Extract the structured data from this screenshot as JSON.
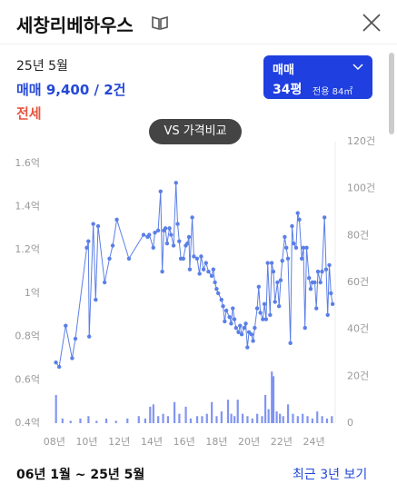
{
  "header": {
    "title": "세창리베하우스"
  },
  "summary": {
    "month": "25년 5월",
    "deal_type": "매매",
    "deal_value": "9,400 / 2건",
    "other_type": "전세"
  },
  "selector": {
    "type": "매매",
    "size": "34평",
    "area": "전용 84㎡"
  },
  "compare_button": "VS 가격비교",
  "footer": {
    "range": "06년 1월 ~ 25년 5월",
    "recent": "최근 3년 보기"
  },
  "chart_data": {
    "type": "line",
    "xlim": [
      2007.9,
      2025.2
    ],
    "xticks": [
      {
        "value": 2008,
        "label": "08년"
      },
      {
        "value": 2010,
        "label": "10년"
      },
      {
        "value": 2012,
        "label": "12년"
      },
      {
        "value": 2014,
        "label": "14년"
      },
      {
        "value": 2016,
        "label": "16년"
      },
      {
        "value": 2018,
        "label": "18년"
      },
      {
        "value": 2020,
        "label": "20년"
      },
      {
        "value": 2022,
        "label": "22년"
      },
      {
        "value": 2024,
        "label": "24년"
      }
    ],
    "ylim": [
      0.4,
      1.7
    ],
    "yticks": [
      {
        "value": 0.4,
        "label": "0.4억"
      },
      {
        "value": 0.6,
        "label": "0.6억"
      },
      {
        "value": 0.8,
        "label": "0.8억"
      },
      {
        "value": 1,
        "label": "1억"
      },
      {
        "value": 1.2,
        "label": "1.2억"
      },
      {
        "value": 1.4,
        "label": "1.4억"
      },
      {
        "value": 1.6,
        "label": "1.6억"
      }
    ],
    "y2lim": [
      0,
      120
    ],
    "y2ticks": [
      0,
      {
        "value": 20,
        "label": "20건"
      },
      {
        "value": 40,
        "label": "40건"
      },
      {
        "value": 60,
        "label": "60건"
      },
      {
        "value": 80,
        "label": "80건"
      },
      {
        "value": 100,
        "label": "100건"
      },
      {
        "value": 120,
        "label": "120건"
      }
    ],
    "line": {
      "color": "#5b7fe6",
      "x": [
        2008.1,
        2008.3,
        2008.7,
        2009.1,
        2009.3,
        2010.0,
        2010.1,
        2010.15,
        2010.4,
        2010.55,
        2010.7,
        2011.1,
        2011.4,
        2011.6,
        2011.85,
        2012.6,
        2013.5,
        2013.75,
        2013.85,
        2014.1,
        2014.2,
        2014.4,
        2014.55,
        2014.65,
        2014.75,
        2014.85,
        2014.95,
        2015.1,
        2015.2,
        2015.35,
        2015.5,
        2015.6,
        2015.7,
        2015.8,
        2015.95,
        2016.1,
        2016.2,
        2016.3,
        2016.35,
        2016.5,
        2016.6,
        2016.8,
        2016.95,
        2017.05,
        2017.2,
        2017.35,
        2017.5,
        2017.7,
        2017.8,
        2017.9,
        2018.0,
        2018.1,
        2018.3,
        2018.4,
        2018.5,
        2018.6,
        2018.8,
        2018.9,
        2019.0,
        2019.1,
        2019.2,
        2019.35,
        2019.45,
        2019.55,
        2019.7,
        2019.8,
        2019.9,
        2020.0,
        2020.15,
        2020.25,
        2020.35,
        2020.5,
        2020.6,
        2020.7,
        2020.85,
        2020.95,
        2021.05,
        2021.15,
        2021.3,
        2021.4,
        2021.5,
        2021.6,
        2021.75,
        2021.85,
        2021.95,
        2022.05,
        2022.2,
        2022.3,
        2022.4,
        2022.55,
        2022.65,
        2022.75,
        2022.9,
        2023.0,
        2023.1,
        2023.25,
        2023.35,
        2023.45,
        2023.55,
        2023.7,
        2023.8,
        2023.9,
        2024.05,
        2024.15,
        2024.25,
        2024.4,
        2024.5,
        2024.65,
        2024.75,
        2024.85,
        2024.95,
        2025.05,
        2025.15
      ],
      "values": [
        0.68,
        0.66,
        0.85,
        0.7,
        0.79,
        1.21,
        1.24,
        0.8,
        1.32,
        0.97,
        1.31,
        1.05,
        1.16,
        1.22,
        1.34,
        1.16,
        1.27,
        1.26,
        1.27,
        1.21,
        1.28,
        1.29,
        1.47,
        1.1,
        1.29,
        1.3,
        1.23,
        1.3,
        1.27,
        1.22,
        1.51,
        1.32,
        1.24,
        1.16,
        1.16,
        1.22,
        1.23,
        1.26,
        1.11,
        1.35,
        1.17,
        1.16,
        1.09,
        1.17,
        1.11,
        1.14,
        1.1,
        1.08,
        1.11,
        1.05,
        1.02,
        1.0,
        0.97,
        0.94,
        0.87,
        0.92,
        0.89,
        0.86,
        0.93,
        0.88,
        0.84,
        0.82,
        0.85,
        0.81,
        0.84,
        0.86,
        0.75,
        0.82,
        0.81,
        0.78,
        0.84,
        0.93,
        1.03,
        0.91,
        0.88,
        0.95,
        0.88,
        1.14,
        0.9,
        1.14,
        1.1,
        0.96,
        1.05,
        0.94,
        1.06,
        1.15,
        1.26,
        1.21,
        1.16,
        0.77,
        1.31,
        1.23,
        1.21,
        1.37,
        1.34,
        1.16,
        1.21,
        0.84,
        1.21,
        1.07,
        1.02,
        1.05,
        1.05,
        0.93,
        1.1,
        1.05,
        1.1,
        1.35,
        1.11,
        0.9,
        1.13,
        1.0,
        0.95
      ]
    },
    "bars": {
      "color": "#6b83ee",
      "axis": "y2",
      "x": [
        2008.1,
        2008.5,
        2009.0,
        2009.6,
        2010.1,
        2010.6,
        2011.2,
        2011.8,
        2012.5,
        2013.2,
        2013.6,
        2013.9,
        2014.1,
        2014.4,
        2014.7,
        2015.0,
        2015.4,
        2015.7,
        2016.1,
        2016.4,
        2016.8,
        2017.1,
        2017.4,
        2017.7,
        2018.0,
        2018.3,
        2018.7,
        2018.9,
        2019.1,
        2019.3,
        2019.6,
        2019.9,
        2020.2,
        2020.5,
        2020.8,
        2021.0,
        2021.2,
        2021.4,
        2021.5,
        2021.7,
        2021.9,
        2022.1,
        2022.4,
        2022.7,
        2023.0,
        2023.3,
        2023.6,
        2023.9,
        2024.2,
        2024.5,
        2024.8,
        2025.1
      ],
      "values": [
        12,
        2,
        1,
        2,
        3,
        1,
        2,
        1,
        2,
        3,
        2,
        7,
        8,
        3,
        4,
        3,
        9,
        4,
        7,
        2,
        3,
        3,
        4,
        9,
        3,
        5,
        10,
        4,
        3,
        10,
        4,
        3,
        2,
        4,
        3,
        12,
        6,
        22,
        20,
        5,
        4,
        3,
        8,
        4,
        3,
        4,
        3,
        2,
        5,
        3,
        2,
        3
      ]
    }
  }
}
